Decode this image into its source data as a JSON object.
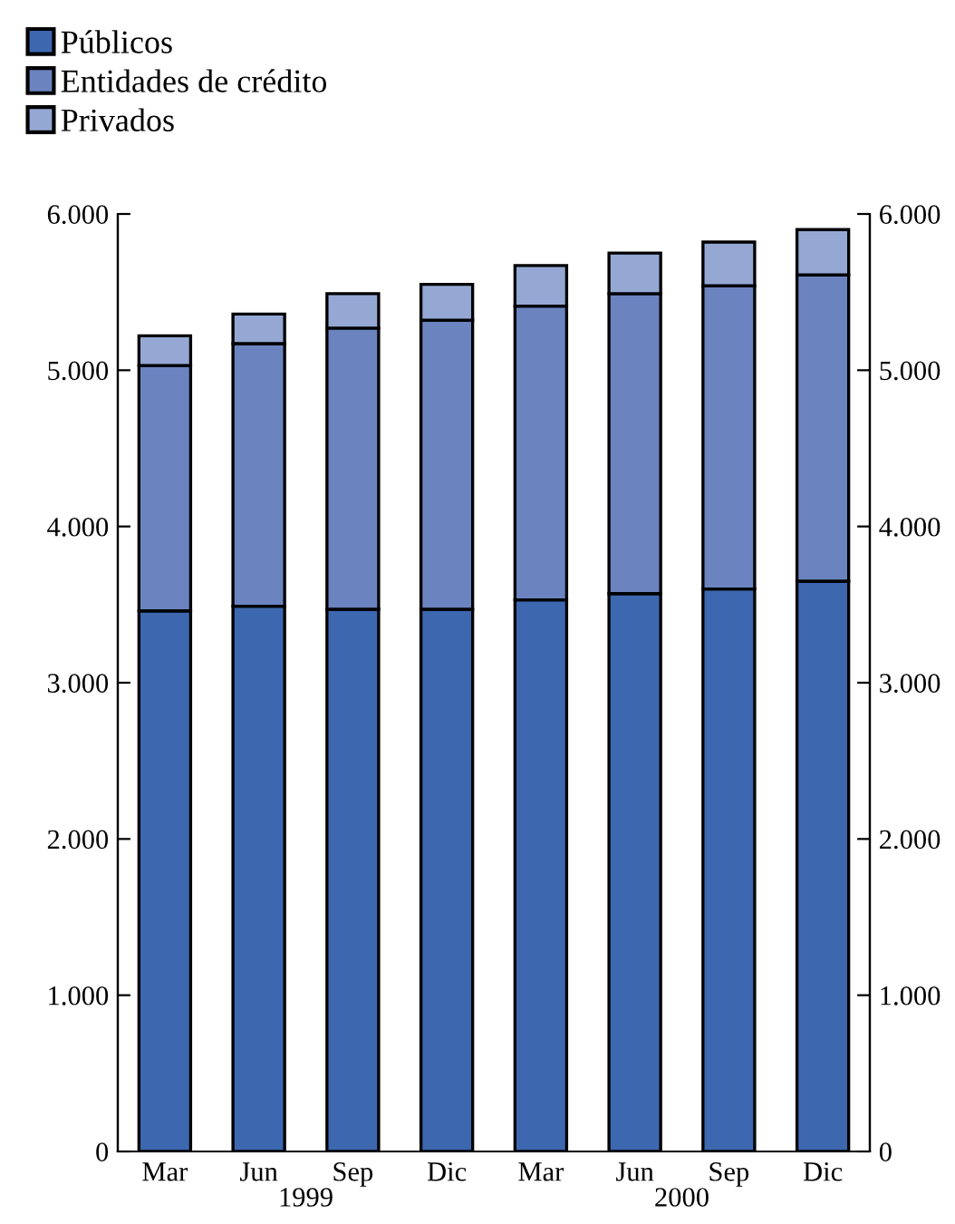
{
  "chart_data": {
    "type": "bar",
    "stacked": true,
    "categories": [
      "Mar",
      "Jun",
      "Sep",
      "Dic",
      "Mar",
      "Jun",
      "Sep",
      "Dic"
    ],
    "series": [
      {
        "name": "Públicos",
        "color": "#3d68b0",
        "values": [
          3460,
          3490,
          3470,
          3470,
          3530,
          3570,
          3600,
          3650
        ]
      },
      {
        "name": "Entidades de crédito",
        "color": "#6b84c0",
        "values": [
          1570,
          1680,
          1800,
          1850,
          1880,
          1920,
          1940,
          1960
        ]
      },
      {
        "name": "Privados",
        "color": "#95a8d4",
        "values": [
          190,
          190,
          220,
          230,
          260,
          260,
          280,
          290
        ]
      }
    ],
    "ylim": [
      0,
      6000
    ],
    "yticks": [
      {
        "value": 0,
        "label": "0"
      },
      {
        "value": 1000,
        "label": "1.000"
      },
      {
        "value": 2000,
        "label": "2.000"
      },
      {
        "value": 3000,
        "label": "3.000"
      },
      {
        "value": 4000,
        "label": "4.000"
      },
      {
        "value": 5000,
        "label": "5.000"
      },
      {
        "value": 6000,
        "label": "6.000"
      }
    ],
    "y2lim": [
      0,
      6000
    ],
    "y2ticks": [
      {
        "value": 0,
        "label": "0"
      },
      {
        "value": 1000,
        "label": "1.000"
      },
      {
        "value": 2000,
        "label": "2.000"
      },
      {
        "value": 3000,
        "label": "3.000"
      },
      {
        "value": 4000,
        "label": "4.000"
      },
      {
        "value": 5000,
        "label": "5.000"
      },
      {
        "value": 6000,
        "label": "6.000"
      }
    ],
    "annotations": [
      "1999",
      "2000"
    ],
    "legend": "top left",
    "grid": false
  }
}
